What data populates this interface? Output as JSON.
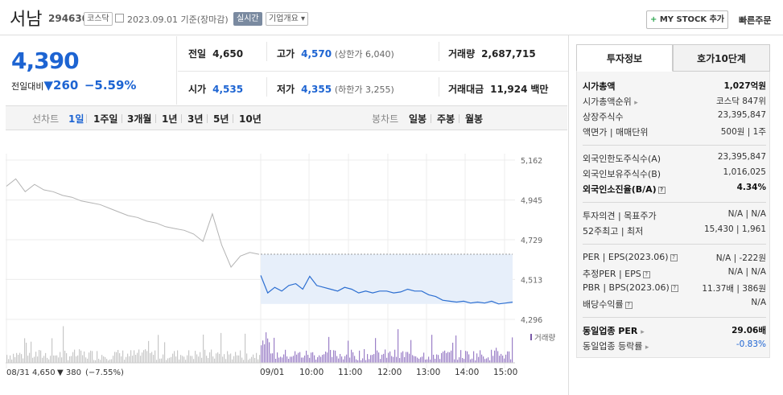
{
  "header": {
    "stock_name": "서남",
    "stock_code": "294630",
    "market": "코스닥",
    "date_text": "2023.09.01  기준(장마감)",
    "realtime": "실시간",
    "company_overview": "기업개요 ▾",
    "mystock": "MY STOCK 추가",
    "quick_order": "빠른주문"
  },
  "price": {
    "current": "4,390",
    "change_label": "전일대비",
    "change_value": "260",
    "change_pct": "−5.59%"
  },
  "stats": {
    "prev_close": {
      "label": "전일",
      "value": "4,650"
    },
    "high": {
      "label": "고가",
      "value": "4,570",
      "sub": "(상한가 6,040)"
    },
    "volume": {
      "label": "거래량",
      "value": "2,687,715"
    },
    "open": {
      "label": "시가",
      "value": "4,535"
    },
    "low": {
      "label": "저가",
      "value": "4,355",
      "sub": "(하한가 3,255)"
    },
    "amount": {
      "label": "거래대금",
      "value": "11,924",
      "unit": "백만"
    }
  },
  "line_tabs": {
    "label": "선차트",
    "items": [
      "1일",
      "1주일",
      "3개월",
      "1년",
      "3년",
      "5년",
      "10년"
    ],
    "active": "1일"
  },
  "candle_tabs": {
    "label": "봉차트",
    "items": [
      "일봉",
      "주봉",
      "월봉"
    ]
  },
  "panel": {
    "tab_invest": "투자정보",
    "tab_orderbook": "호가10단계",
    "rows": {
      "market_cap": {
        "k": "시가총액",
        "v": "1,027억원"
      },
      "market_cap_rank": {
        "k": "시가총액순위",
        "v": "코스닥 847위"
      },
      "listed_shares": {
        "k": "상장주식수",
        "v": "23,395,847"
      },
      "face_value": {
        "k": "액면가 | 매매단위",
        "v": "500원 | 1주"
      },
      "foreign_limit": {
        "k": "외국인한도주식수(A)",
        "v": "23,395,847"
      },
      "foreign_hold": {
        "k": "외국인보유주식수(B)",
        "v": "1,016,025"
      },
      "foreign_ratio": {
        "k": "외국인소진율(B/A)",
        "v": "4.34%"
      },
      "opinion": {
        "k": "투자의견 | 목표주가",
        "v": "N/A | N/A"
      },
      "week52": {
        "k": "52주최고 | 최저",
        "v": "15,430 | 1,961"
      },
      "per": {
        "k": "PER | EPS(2023.06)",
        "v": "N/A | -222원"
      },
      "est_per": {
        "k": "추정PER | EPS",
        "v": "N/A | N/A"
      },
      "pbr": {
        "k": "PBR | BPS(2023.06)",
        "v": "11.37배 | 386원"
      },
      "dividend": {
        "k": "배당수익률",
        "v": "N/A"
      },
      "sector_per": {
        "k": "동일업종 PER",
        "v": "29.06배"
      },
      "sector_rate": {
        "k": "동일업종 등락률",
        "v": "-0.83%"
      }
    }
  },
  "chart_data": {
    "type": "line",
    "y_ticks": [
      5162,
      4945,
      4729,
      4513,
      4296
    ],
    "ylim": [
      4296,
      5162
    ],
    "x_ticks": [
      "08/31",
      "09/01",
      "10:00",
      "11:00",
      "12:00",
      "13:00",
      "14:00",
      "15:00"
    ],
    "volume_label": "거래량",
    "prev_day_summary": {
      "prefix": "08/31",
      "price": "4,650",
      "change": "▼ 380",
      "pct": "(−7.55%)"
    },
    "prev_close": 4650,
    "series": [
      {
        "values": [
          5020,
          5060,
          4990,
          5030,
          5000,
          4990,
          4970,
          4960,
          4940,
          4930,
          4920,
          4900,
          4880,
          4860,
          4850,
          4830,
          4820,
          4800,
          4790,
          4780,
          4760,
          4720,
          4870,
          4700,
          4580,
          4640,
          4660,
          4650
        ]
      },
      {
        "values": [
          4535,
          4440,
          4470,
          4450,
          4480,
          4490,
          4460,
          4530,
          4480,
          4470,
          4460,
          4450,
          4470,
          4460,
          4440,
          4450,
          4440,
          4450,
          4450,
          4440,
          4445,
          4460,
          4450,
          4450,
          4430,
          4420,
          4400,
          4395,
          4390,
          4395,
          4385,
          4390,
          4385,
          4395,
          4380,
          4385,
          4390
        ]
      }
    ],
    "grid": true
  }
}
